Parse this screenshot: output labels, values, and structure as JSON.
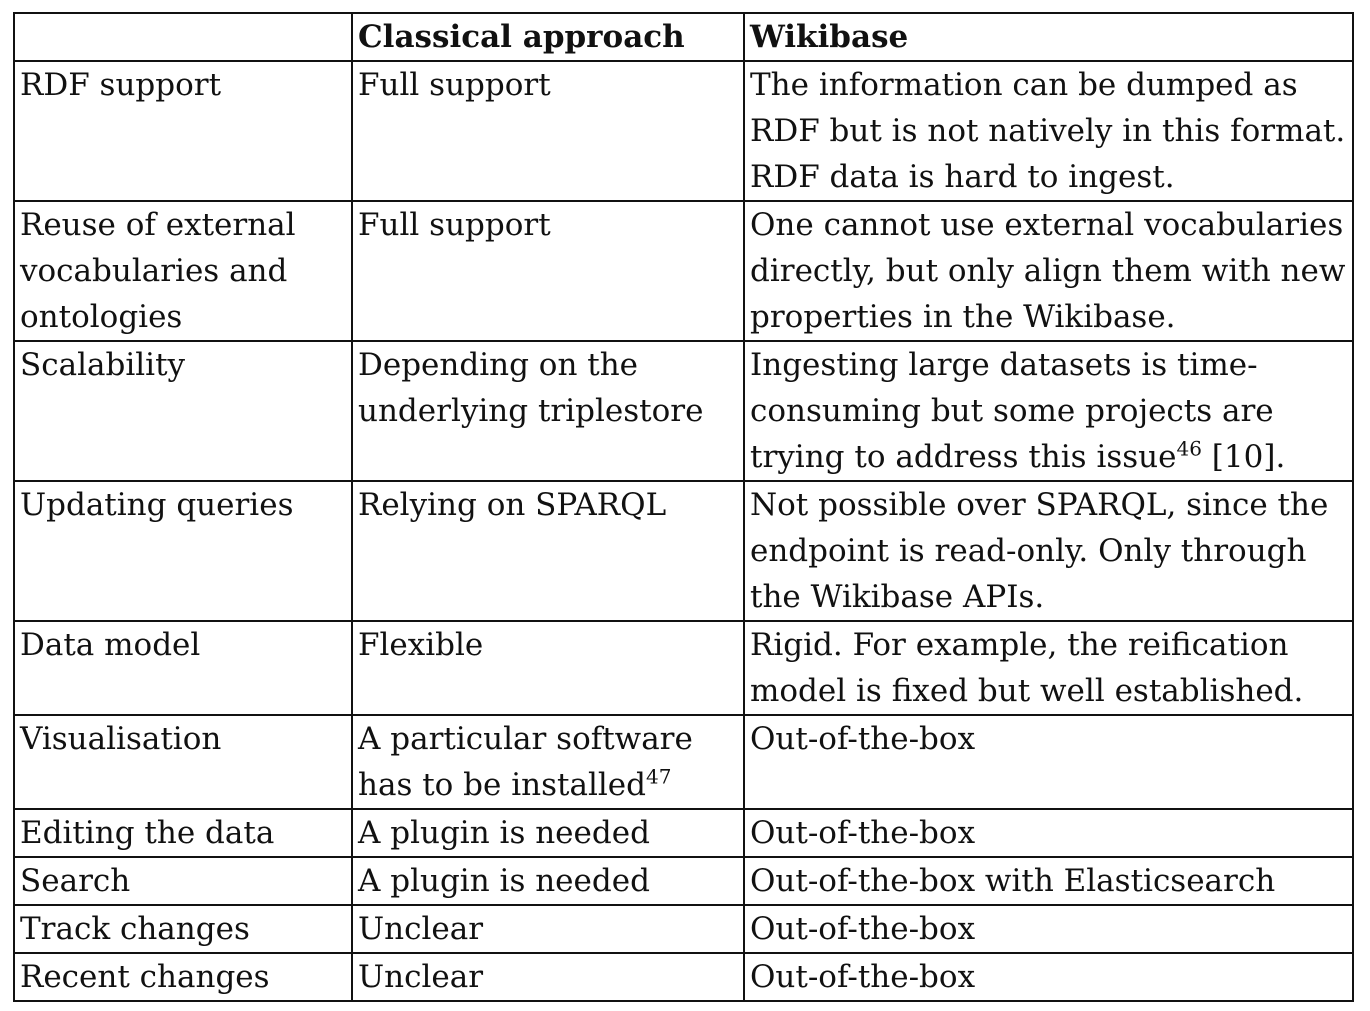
{
  "table": {
    "headers": [
      "",
      "Classical approach",
      "Wikibase"
    ],
    "rows": [
      {
        "feature": "RDF support",
        "classical": "Full support",
        "classical_sup": "",
        "wikibase": "The information can be dumped as RDF but is not natively in this format. RDF data is hard to ingest.",
        "wikibase_sup": "",
        "wikibase_suffix": ""
      },
      {
        "feature": "Reuse of external vocabularies and ontologies",
        "classical": "Full support",
        "classical_sup": "",
        "wikibase": "One cannot use external vocabularies directly, but only align them with new properties in the Wikibase.",
        "wikibase_sup": "",
        "wikibase_suffix": ""
      },
      {
        "feature": "Scalability",
        "classical": "Depending on the underlying triplestore",
        "classical_sup": "",
        "wikibase": "Ingesting large datasets is time-consuming but some projects are trying to address this issue",
        "wikibase_sup": "46",
        "wikibase_suffix": " [10]."
      },
      {
        "feature": "Updating queries",
        "classical": "Relying on SPARQL",
        "classical_sup": "",
        "wikibase": "Not possible over SPARQL, since the endpoint is read-only. Only through the Wikibase APIs.",
        "wikibase_sup": "",
        "wikibase_suffix": ""
      },
      {
        "feature": "Data model",
        "classical": "Flexible",
        "classical_sup": "",
        "wikibase": "Rigid. For example, the reification model is fixed but well established.",
        "wikibase_sup": "",
        "wikibase_suffix": ""
      },
      {
        "feature": "Visualisation",
        "classical": "A particular software has to be installed",
        "classical_sup": "47",
        "wikibase": "Out-of-the-box",
        "wikibase_sup": "",
        "wikibase_suffix": ""
      },
      {
        "feature": "Editing the data",
        "classical": "A plugin is needed",
        "classical_sup": "",
        "wikibase": "Out-of-the-box",
        "wikibase_sup": "",
        "wikibase_suffix": ""
      },
      {
        "feature": "Search",
        "classical": "A plugin is needed",
        "classical_sup": "",
        "wikibase": "Out-of-the-box with Elasticsearch",
        "wikibase_sup": "",
        "wikibase_suffix": ""
      },
      {
        "feature": "Track changes",
        "classical": "Unclear",
        "classical_sup": "",
        "wikibase": "Out-of-the-box",
        "wikibase_sup": "",
        "wikibase_suffix": ""
      },
      {
        "feature": "Recent changes",
        "classical": "Unclear",
        "classical_sup": "",
        "wikibase": "Out-of-the-box",
        "wikibase_sup": "",
        "wikibase_suffix": ""
      }
    ]
  }
}
